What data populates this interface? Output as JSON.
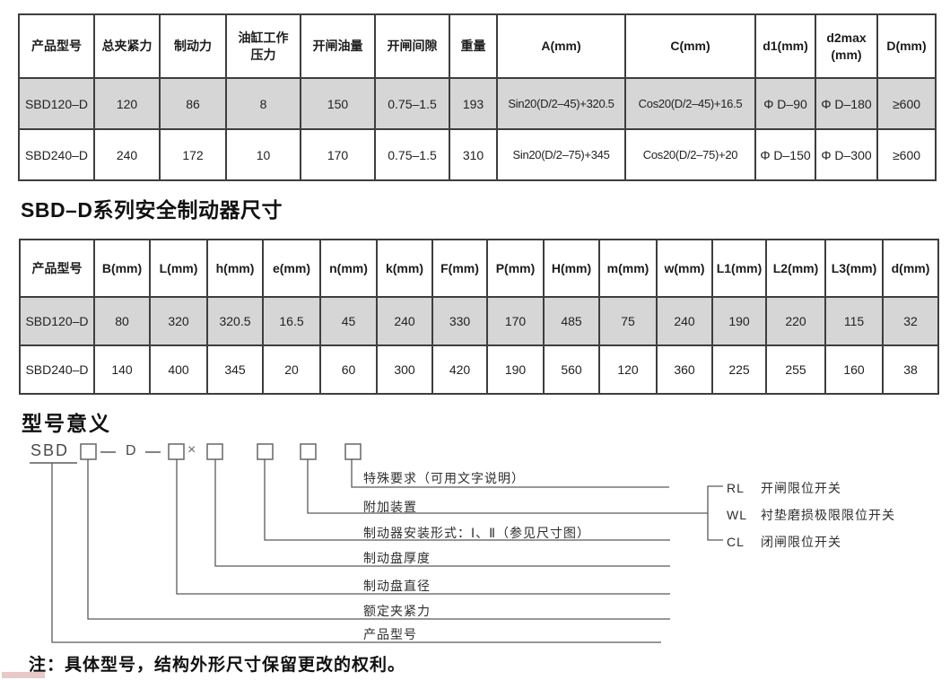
{
  "table1": {
    "headers": [
      "产品型号",
      "总夹紧力",
      "制动力",
      "油缸工作\n压力",
      "开闸油量",
      "开闸间隙",
      "重量",
      "A(mm)",
      "C(mm)",
      "d1(mm)",
      "d2max\n(mm)",
      "D(mm)"
    ],
    "rows": [
      [
        "SBD120–D",
        "120",
        "86",
        "8",
        "150",
        "0.75–1.5",
        "193",
        "Sin20(D/2–45)+320.5",
        "Cos20(D/2–45)+16.5",
        "Φ D–90",
        "Φ D–180",
        "≥600"
      ],
      [
        "SBD240–D",
        "240",
        "172",
        "10",
        "170",
        "0.75–1.5",
        "310",
        "Sin20(D/2–75)+345",
        "Cos20(D/2–75)+20",
        "Φ D–150",
        "Φ D–300",
        "≥600"
      ]
    ]
  },
  "section2_title": "SBD–D系列安全制动器尺寸",
  "table2": {
    "headers": [
      "产品型号",
      "B(mm)",
      "L(mm)",
      "h(mm)",
      "e(mm)",
      "n(mm)",
      "k(mm)",
      "F(mm)",
      "P(mm)",
      "H(mm)",
      "m(mm)",
      "w(mm)",
      "L1(mm)",
      "L2(mm)",
      "L3(mm)",
      "d(mm)"
    ],
    "rows": [
      [
        "SBD120–D",
        "80",
        "320",
        "320.5",
        "16.5",
        "45",
        "240",
        "330",
        "170",
        "485",
        "75",
        "240",
        "190",
        "220",
        "115",
        "32"
      ],
      [
        "SBD240–D",
        "140",
        "400",
        "345",
        "20",
        "60",
        "300",
        "420",
        "190",
        "560",
        "120",
        "360",
        "225",
        "255",
        "160",
        "38"
      ]
    ]
  },
  "diagram": {
    "title": "型号意义",
    "prefix": "SBD",
    "d_literal": "D",
    "times": "×",
    "labels": [
      "特殊要求（可用文字说明）",
      "附加装置",
      "制动器安装形式：Ⅰ、Ⅱ（参见尺寸图）",
      "制动盘厚度",
      "制动盘直径",
      "额定夹紧力",
      "产品型号"
    ],
    "switches": [
      {
        "code": "RL",
        "desc": "开闸限位开关"
      },
      {
        "code": "WL",
        "desc": "衬垫磨损极限限位开关"
      },
      {
        "code": "CL",
        "desc": "闭闸限位开关"
      }
    ]
  },
  "note": "注：具体型号，结构外形尺寸保留更改的权利。",
  "colors": {
    "row_highlight": "#d6d6d6",
    "table_border": "#3e3e3e",
    "diagram_line": "#5a5a5a"
  }
}
